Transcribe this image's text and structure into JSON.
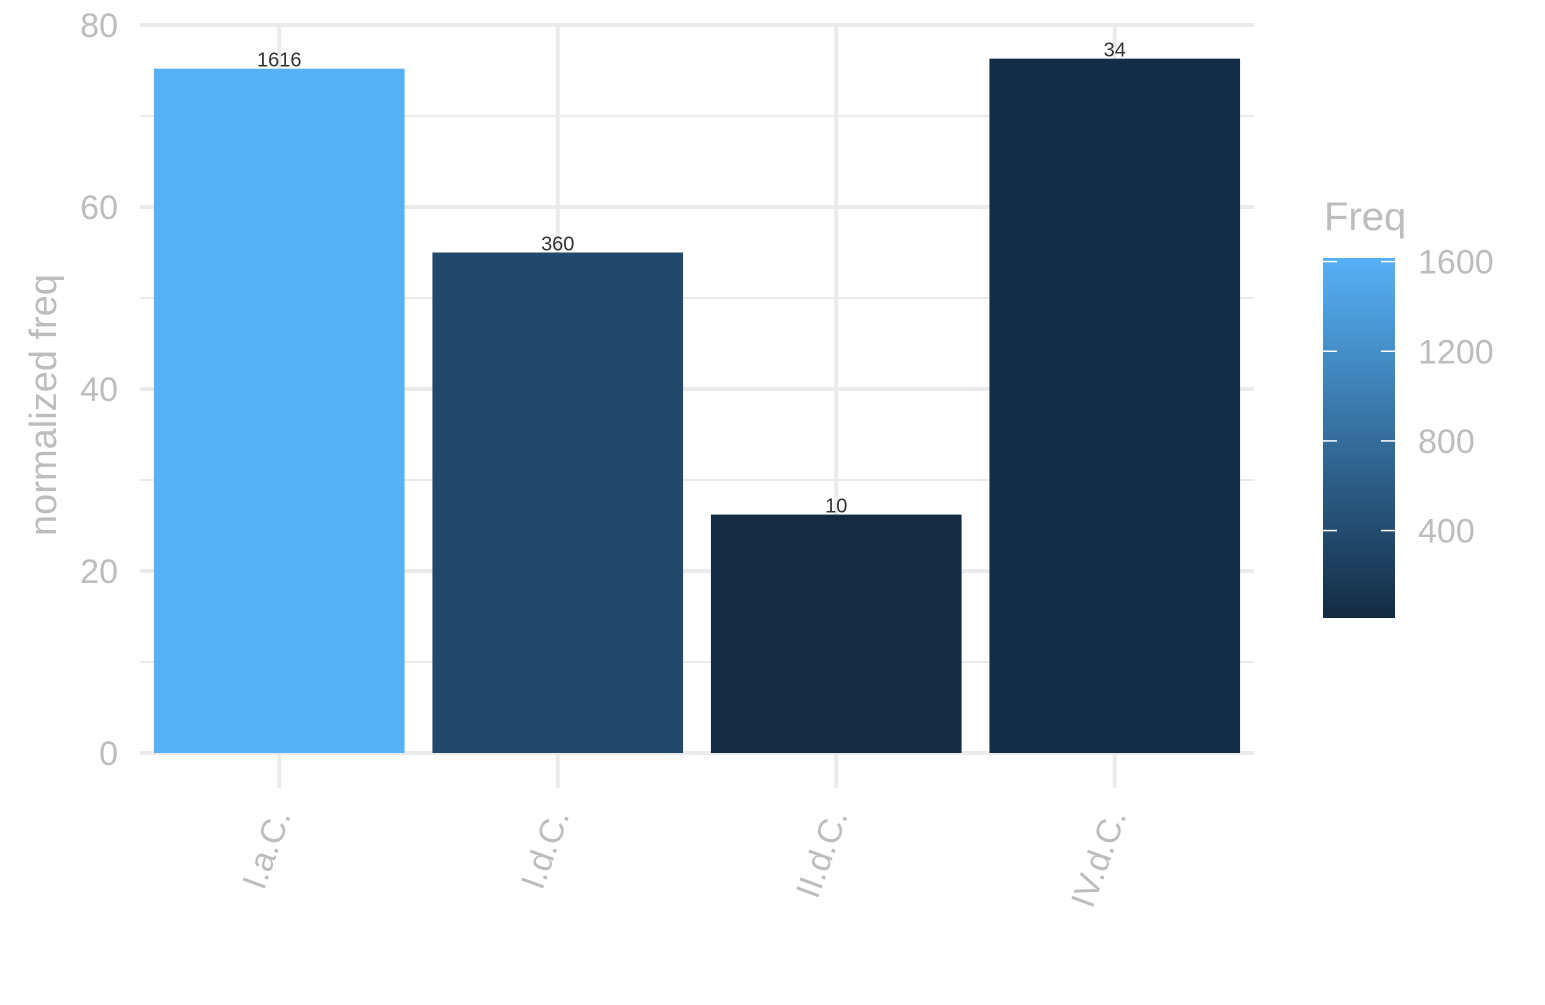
{
  "chart_data": {
    "type": "bar",
    "categories": [
      "I.a.C.",
      "I.d.C.",
      "II.d.C.",
      "IV.d.C."
    ],
    "values": [
      75.2,
      55.0,
      26.2,
      76.3
    ],
    "freq": [
      1616,
      360,
      10,
      34
    ],
    "bar_labels": [
      "1616",
      "360",
      "10",
      "34"
    ],
    "title": "",
    "xlabel": "",
    "ylabel": "normalized freq",
    "ylim": [
      0,
      80
    ],
    "yticks": [
      0,
      20,
      40,
      60,
      80
    ],
    "y_tick_labels": [
      "0",
      "20",
      "40",
      "60",
      "80"
    ],
    "grid": true,
    "legend": {
      "title": "Freq",
      "placement": "right",
      "type": "colorbar",
      "range": [
        10,
        1616
      ],
      "ticks": [
        400,
        800,
        1200,
        1600
      ],
      "tick_labels": [
        "400",
        "800",
        "1200",
        "1600"
      ],
      "color_low": "#132B43",
      "color_high": "#56B1F7"
    }
  }
}
